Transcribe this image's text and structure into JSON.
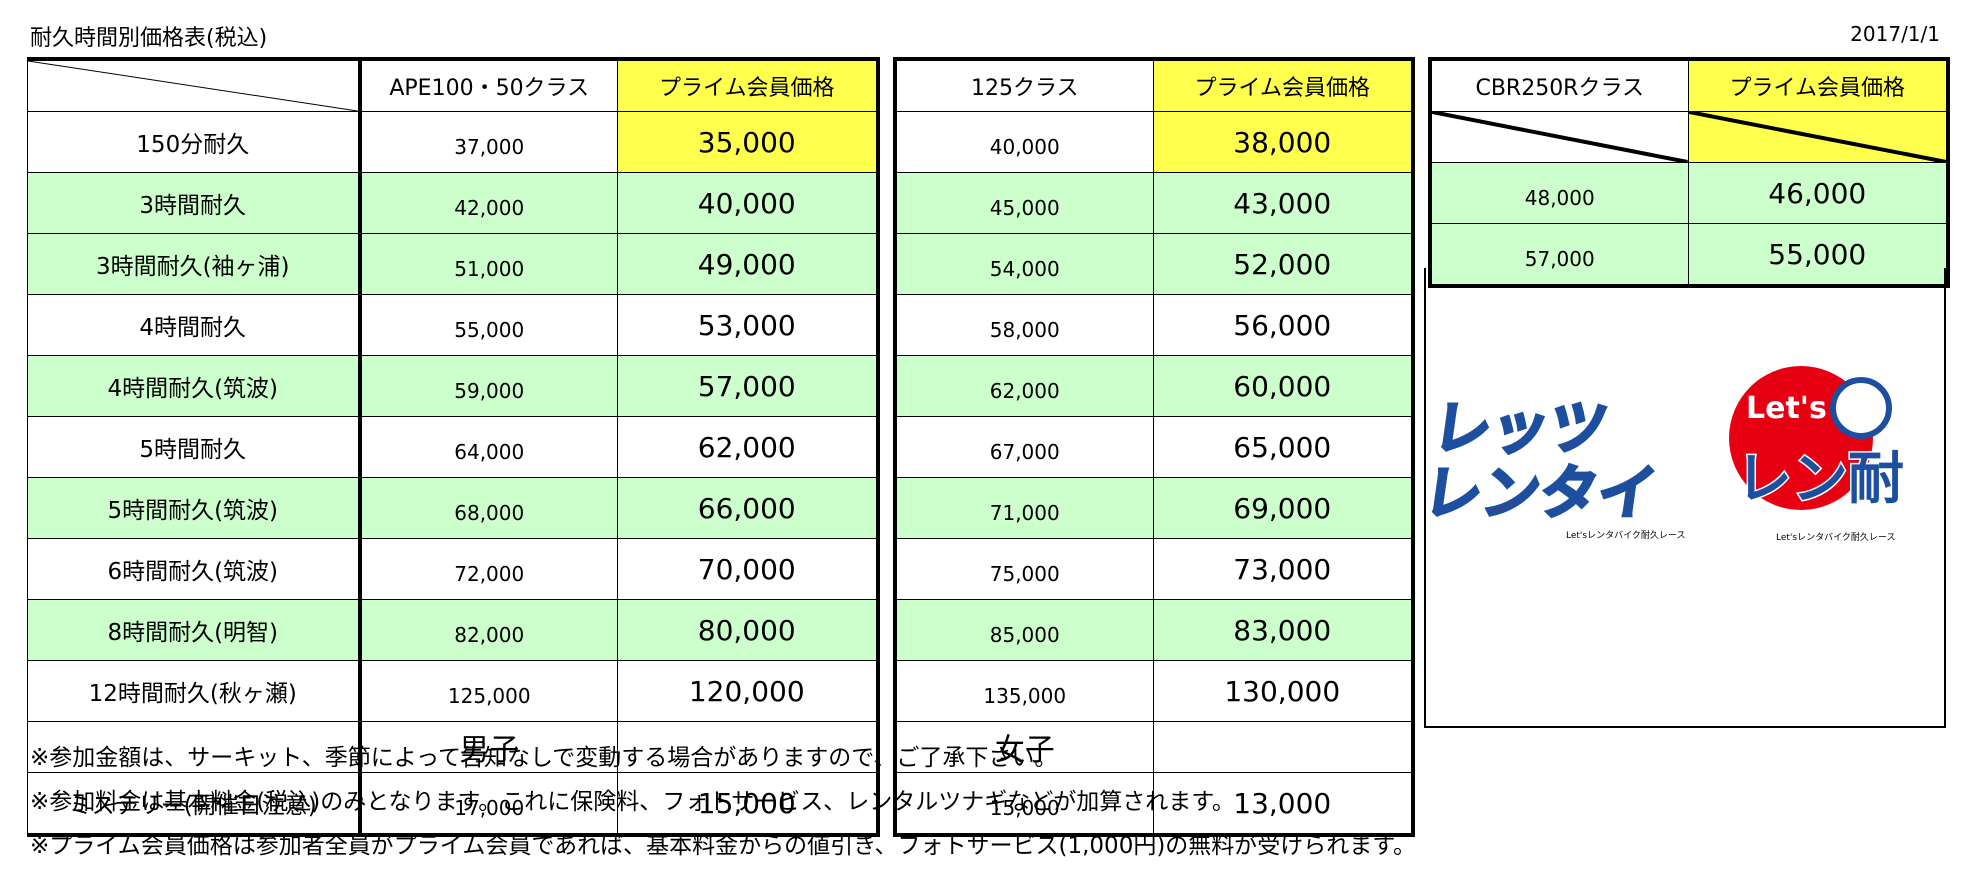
{
  "title": "耐久時間別価格表(税込)",
  "date": "2017/1/1",
  "headers": {
    "a_class": "APE100・50クラス",
    "b_class": "125クラス",
    "c_class": "CBR250Rクラス",
    "prime": "プライム会員価格"
  },
  "rows": [
    {
      "label": "150分耐久",
      "a": "37,000",
      "ap": "35,000",
      "b": "40,000",
      "bp": "38,000"
    },
    {
      "label": "3時間耐久",
      "a": "42,000",
      "ap": "40,000",
      "b": "45,000",
      "bp": "43,000"
    },
    {
      "label": "3時間耐久(袖ヶ浦)",
      "a": "51,000",
      "ap": "49,000",
      "b": "54,000",
      "bp": "52,000"
    },
    {
      "label": "4時間耐久",
      "a": "55,000",
      "ap": "53,000",
      "b": "58,000",
      "bp": "56,000"
    },
    {
      "label": "4時間耐久(筑波)",
      "a": "59,000",
      "ap": "57,000",
      "b": "62,000",
      "bp": "60,000"
    },
    {
      "label": "5時間耐久",
      "a": "64,000",
      "ap": "62,000",
      "b": "67,000",
      "bp": "65,000"
    },
    {
      "label": "5時間耐久(筑波)",
      "a": "68,000",
      "ap": "66,000",
      "b": "71,000",
      "bp": "69,000"
    },
    {
      "label": "6時間耐久(筑波)",
      "a": "72,000",
      "ap": "70,000",
      "b": "75,000",
      "bp": "73,000"
    },
    {
      "label": "8時間耐久(明智)",
      "a": "82,000",
      "ap": "80,000",
      "b": "85,000",
      "bp": "83,000"
    },
    {
      "label": "12時間耐久(秋ヶ瀬)",
      "a": "125,000",
      "ap": "120,000",
      "b": "135,000",
      "bp": "130,000"
    }
  ],
  "cbr_rows": [
    {
      "c": "48,000",
      "cp": "46,000"
    },
    {
      "c": "57,000",
      "cp": "55,000"
    }
  ],
  "sex_row": {
    "male": "男子",
    "female": "女子"
  },
  "mystery": {
    "label": "ミステリー(開催日注意)",
    "a": "17,000",
    "ap": "15,000",
    "b": "15,000",
    "bp": "13,000"
  },
  "logos": {
    "logo1_line1": "レッツ",
    "logo1_line2": "レンタイ",
    "logo1_sub": "Let'sレンタバイク耐久レース",
    "logo2_top": "Let's",
    "logo2_main": "レン耐",
    "logo2_sub": "Let'sレンタバイク耐久レース",
    "red": "#e60012",
    "blue": "#1d4fa0"
  },
  "notes": [
    "※参加金額は、サーキット、季節によって告知なしで変動する場合がありますので、ご了承下さい。",
    "※参加料金は基本料金(税込)のみとなります。これに保険料、フォトサービス、レンタルツナギなどが加算されます。",
    "※プライム会員価格は参加者全員がプライム会員であれば、基本料金からの値引き、フォトサービス(1,000円)の無料が受けられます。"
  ]
}
